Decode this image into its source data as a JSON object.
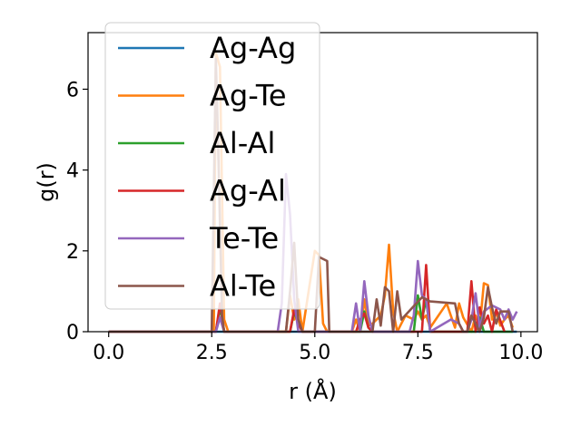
{
  "chart_data": {
    "type": "line",
    "title": "",
    "xlabel": "r (Å)",
    "ylabel": "g(r)",
    "xlim": [
      -0.5,
      10.4
    ],
    "ylim": [
      0,
      7.4
    ],
    "xticks": [
      0.0,
      2.5,
      5.0,
      7.5,
      10.0
    ],
    "xtick_labels": [
      "0.0",
      "2.5",
      "5.0",
      "7.5",
      "10.0"
    ],
    "yticks": [
      0,
      2,
      4,
      6
    ],
    "ytick_labels": [
      "0",
      "2",
      "4",
      "6"
    ],
    "grid": false,
    "legend_position": "top-left",
    "series": [
      {
        "name": "Ag-Ag",
        "color": "#1f77b4",
        "x": [
          0,
          2.5,
          9.9
        ],
        "y": [
          0,
          0,
          0
        ]
      },
      {
        "name": "Ag-Te",
        "color": "#ff7f0e",
        "x": [
          0,
          2.55,
          2.6,
          2.7,
          2.8,
          2.9,
          4.3,
          4.4,
          4.5,
          4.6,
          4.7,
          5.0,
          5.1,
          5.2,
          5.3,
          5.4,
          5.7,
          5.9,
          6.0,
          6.1,
          6.2,
          6.3,
          6.4,
          6.5,
          6.6,
          6.7,
          6.8,
          6.9,
          7.0,
          7.1,
          7.2,
          7.4,
          7.5,
          7.6,
          7.7,
          7.8,
          8.2,
          8.3,
          8.4,
          8.5,
          8.6,
          8.8,
          8.9,
          9.0,
          9.1,
          9.2,
          9.3,
          9.4,
          9.5,
          9.6,
          9.7,
          9.8
        ],
        "y": [
          0,
          0,
          6.9,
          6.55,
          0.3,
          0,
          0,
          0.9,
          0.3,
          0.8,
          0,
          2.0,
          1.9,
          0.2,
          0,
          0,
          0,
          0,
          0.3,
          0,
          0.8,
          0.15,
          0.2,
          0.3,
          0.4,
          0.9,
          2.15,
          0.5,
          0,
          0.2,
          0.4,
          0.3,
          0.5,
          0.3,
          0.4,
          0.1,
          0.7,
          0.4,
          0.1,
          0.7,
          0.35,
          0,
          0.4,
          0.1,
          1.2,
          1.15,
          0.3,
          0.5,
          0.15,
          0.3,
          0.4,
          0.1
        ]
      },
      {
        "name": "Al-Al",
        "color": "#2ca02c",
        "x": [
          0,
          2.6,
          2.7,
          2.8,
          4.4,
          4.5,
          4.6,
          4.7,
          6.1,
          6.2,
          6.3,
          6.4,
          7.4,
          7.5,
          7.6,
          7.7,
          7.8,
          8.9,
          9.0,
          9.1,
          9.8
        ],
        "y": [
          0,
          0,
          0.6,
          0,
          0,
          0.5,
          0.2,
          0,
          0,
          0.5,
          0.1,
          0,
          0,
          0.9,
          0.3,
          0.8,
          0,
          0,
          0.35,
          0,
          0
        ]
      },
      {
        "name": "Ag-Al",
        "color": "#d62728",
        "x": [
          0,
          2.6,
          2.7,
          2.8,
          4.4,
          4.5,
          4.6,
          4.7,
          5.9,
          6.0,
          6.1,
          6.2,
          6.3,
          6.4,
          7.6,
          7.7,
          7.8,
          8.7,
          8.8,
          8.9,
          9.0,
          9.1,
          9.2,
          9.3,
          9.4,
          9.6
        ],
        "y": [
          0,
          0,
          0.7,
          0,
          0,
          0.55,
          0.2,
          0,
          0,
          0,
          0.3,
          0.45,
          0.1,
          0,
          0,
          1.65,
          0,
          0,
          1.25,
          0,
          0.6,
          0.2,
          0.4,
          0,
          0.55,
          0
        ]
      },
      {
        "name": "Te-Te",
        "color": "#9467bd",
        "x": [
          0,
          2.6,
          2.7,
          2.8,
          4.1,
          4.2,
          4.3,
          4.4,
          4.5,
          4.6,
          4.7,
          5.9,
          6.0,
          6.1,
          6.2,
          6.3,
          6.4,
          7.3,
          7.4,
          7.5,
          7.6,
          7.7,
          7.8,
          8.3,
          8.5,
          8.6,
          8.7,
          8.8,
          8.9,
          9.0,
          9.1,
          9.3,
          9.5,
          9.6,
          9.7,
          9.8,
          9.9
        ],
        "y": [
          0,
          0,
          0.35,
          0,
          0,
          0.7,
          3.9,
          2.9,
          0.8,
          0,
          0,
          0,
          0.7,
          0,
          1.25,
          0.4,
          0,
          0,
          0.4,
          1.75,
          0.9,
          0.8,
          0,
          0.3,
          0.2,
          0,
          0,
          0.3,
          0.95,
          0.1,
          0.5,
          0.65,
          0.55,
          0.3,
          0.55,
          0.3,
          0.5
        ]
      },
      {
        "name": "Al-Te",
        "color": "#8c564b",
        "x": [
          0,
          2.5,
          2.6,
          2.65,
          2.75,
          2.8,
          4.3,
          4.4,
          4.5,
          4.6,
          4.7,
          5.0,
          5.1,
          5.3,
          5.35,
          6.4,
          6.5,
          6.6,
          6.7,
          6.8,
          6.9,
          7.0,
          7.1,
          7.6,
          7.7,
          7.8,
          8.4,
          8.5,
          8.6,
          8.7,
          8.8,
          9.0,
          9.1,
          9.2,
          9.3,
          9.4,
          9.5,
          9.7,
          9.8
        ],
        "y": [
          0,
          0,
          6.75,
          4.8,
          0.4,
          0,
          0,
          1.0,
          2.2,
          0.3,
          0,
          0,
          1.85,
          1.75,
          0,
          0,
          0.8,
          0.15,
          1.1,
          1.0,
          0,
          1.0,
          0.3,
          0.85,
          0.8,
          0.75,
          0.7,
          0.2,
          0,
          0,
          0.4,
          0,
          0.35,
          1.1,
          0.6,
          0.2,
          0.5,
          0.5,
          0
        ]
      }
    ]
  }
}
